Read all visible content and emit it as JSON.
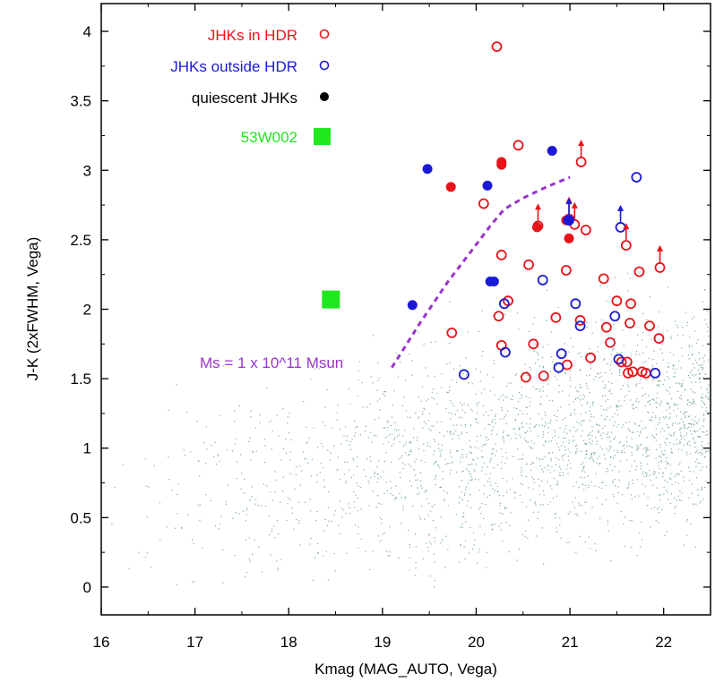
{
  "chart_data": {
    "type": "scatter",
    "xlabel": "Kmag (MAG_AUTO, Vega)",
    "ylabel": "J-K (2xFWHM, Vega)",
    "xlim": [
      16,
      22.5
    ],
    "ylim": [
      -0.2,
      4.2
    ],
    "xticks": [
      "16",
      "17",
      "18",
      "19",
      "20",
      "21",
      "22"
    ],
    "yticks": [
      "0",
      "0.5",
      "1",
      "1.5",
      "2",
      "2.5",
      "3",
      "3.5",
      "4"
    ],
    "grid": false,
    "legend": {
      "placement": "top-left",
      "entries": [
        {
          "label": "JHKs in HDR",
          "marker": "open-circle",
          "color": "#e8141b"
        },
        {
          "label": "JHKs outside HDR",
          "marker": "open-circle",
          "color": "#1a1ad6"
        },
        {
          "label": "quiescent JHKs",
          "marker": "filled-circle",
          "color": "#000000"
        },
        {
          "label": "53W002",
          "marker": "square",
          "color": "#1fe81f"
        }
      ]
    },
    "annotation": {
      "text": "Ms = 1 x 10^11 Msun",
      "color": "#9933cc"
    },
    "mass_curve": {
      "color": "#9933cc",
      "x": [
        19.1,
        19.4,
        19.7,
        19.95,
        20.15,
        20.3,
        20.5,
        20.75,
        21.0
      ],
      "y": [
        1.58,
        1.9,
        2.2,
        2.42,
        2.6,
        2.72,
        2.8,
        2.88,
        2.95
      ]
    },
    "series": [
      {
        "name": "JHKs in HDR",
        "marker": "open",
        "color": "#e8141b",
        "x": [
          20.22,
          20.45,
          21.12,
          20.08,
          20.66,
          20.99,
          21.17,
          21.05,
          20.27,
          20.56,
          20.96,
          21.36,
          21.6,
          21.74,
          21.96,
          20.34,
          21.5,
          21.65,
          20.24,
          20.85,
          21.11,
          21.39,
          21.64,
          21.85,
          19.74,
          21.43,
          20.27,
          20.61,
          21.95,
          21.55,
          21.61,
          21.22,
          20.53,
          20.72,
          20.97,
          21.77,
          21.81,
          21.67,
          21.62
        ],
        "y": [
          3.89,
          3.18,
          3.06,
          2.76,
          2.6,
          2.65,
          2.57,
          2.61,
          2.39,
          2.32,
          2.28,
          2.22,
          2.46,
          2.27,
          2.3,
          2.06,
          2.06,
          2.04,
          1.95,
          1.94,
          1.92,
          1.87,
          1.9,
          1.88,
          1.83,
          1.76,
          1.74,
          1.75,
          1.79,
          1.62,
          1.62,
          1.65,
          1.51,
          1.52,
          1.6,
          1.55,
          1.54,
          1.55,
          1.54
        ]
      },
      {
        "name": "JHKs outside HDR",
        "marker": "open",
        "color": "#1a1ad6",
        "x": [
          21.71,
          20.99,
          21.54,
          20.71,
          21.06,
          20.3,
          21.48,
          21.11,
          20.31,
          20.91,
          19.87,
          20.88,
          21.52,
          21.91
        ],
        "y": [
          2.95,
          2.64,
          2.59,
          2.21,
          2.04,
          2.04,
          1.95,
          1.88,
          1.69,
          1.68,
          1.53,
          1.58,
          1.64,
          1.54
        ]
      },
      {
        "name": "quiescent JHKs (in HDR)",
        "marker": "filled",
        "color": "#e8141b",
        "x": [
          20.27,
          20.27,
          19.73,
          20.65,
          20.96,
          20.99
        ],
        "y": [
          3.06,
          3.04,
          2.88,
          2.59,
          2.64,
          2.51
        ]
      },
      {
        "name": "quiescent JHKs (outside HDR)",
        "marker": "filled",
        "color": "#1a1ad6",
        "x": [
          19.48,
          20.81,
          20.12,
          20.15,
          20.19,
          19.32,
          20.98
        ],
        "y": [
          3.01,
          3.14,
          2.89,
          2.2,
          2.2,
          2.03,
          2.64
        ]
      },
      {
        "name": "53W002",
        "marker": "square",
        "color": "#1fe81f",
        "x": [
          18.45
        ],
        "y": [
          2.07
        ]
      }
    ],
    "lower_limit_arrows": [
      {
        "x": 21.12,
        "y": 3.06,
        "color": "#e8141b"
      },
      {
        "x": 20.66,
        "y": 2.6,
        "color": "#e8141b"
      },
      {
        "x": 20.99,
        "y": 2.65,
        "color": "#e8141b"
      },
      {
        "x": 21.05,
        "y": 2.61,
        "color": "#e8141b"
      },
      {
        "x": 21.6,
        "y": 2.46,
        "color": "#e8141b"
      },
      {
        "x": 21.96,
        "y": 2.3,
        "color": "#e8141b"
      },
      {
        "x": 20.99,
        "y": 2.64,
        "color": "#1a1ad6"
      },
      {
        "x": 21.54,
        "y": 2.59,
        "color": "#1a1ad6"
      }
    ],
    "background_points": {
      "color": "#7aa8a8",
      "description_free": true
    }
  }
}
